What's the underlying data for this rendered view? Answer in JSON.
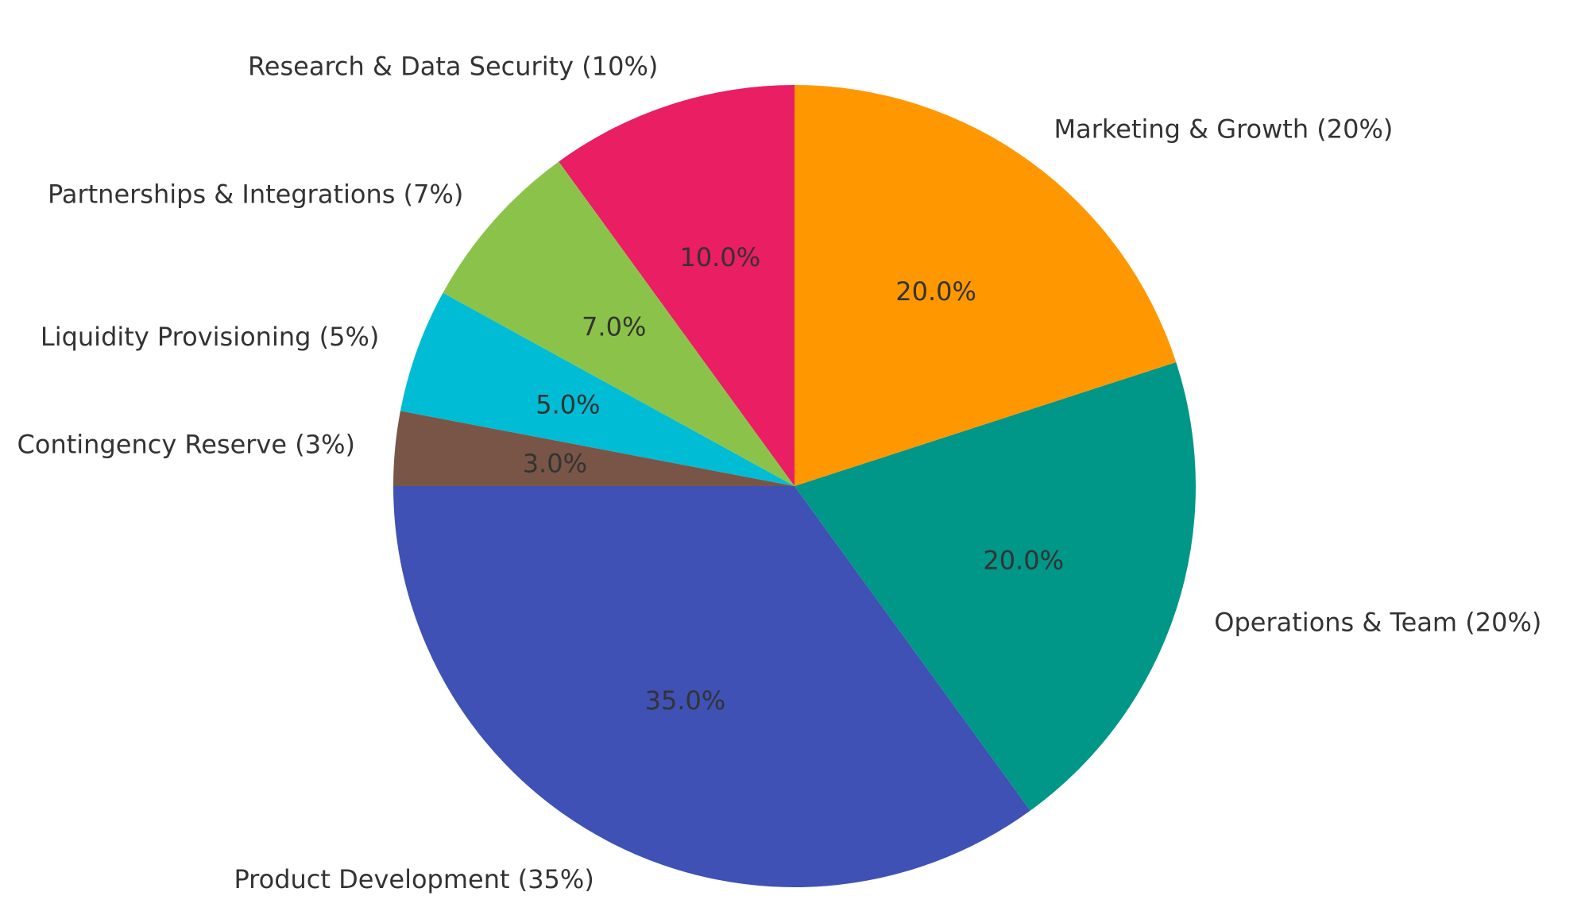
{
  "chart_data": {
    "type": "pie",
    "title": "",
    "start_angle_deg": 90,
    "direction": "counterclockwise",
    "slices": [
      {
        "name": "Research & Data Security",
        "value": 10,
        "label": "Research & Data Security (10%)",
        "pct_label": "10.0%",
        "color": "#E91E63"
      },
      {
        "name": "Partnerships & Integrations",
        "value": 7,
        "label": "Partnerships & Integrations (7%)",
        "pct_label": "7.0%",
        "color": "#8BC34A"
      },
      {
        "name": "Liquidity Provisioning",
        "value": 5,
        "label": "Liquidity Provisioning (5%)",
        "pct_label": "5.0%",
        "color": "#00BCD4"
      },
      {
        "name": "Contingency Reserve",
        "value": 3,
        "label": "Contingency Reserve (3%)",
        "pct_label": "3.0%",
        "color": "#795548"
      },
      {
        "name": "Product Development",
        "value": 35,
        "label": "Product Development (35%)",
        "pct_label": "35.0%",
        "color": "#3F51B5"
      },
      {
        "name": "Operations & Team",
        "value": 20,
        "label": "Operations & Team (20%)",
        "pct_label": "20.0%",
        "color": "#009688"
      },
      {
        "name": "Marketing & Growth",
        "value": 20,
        "label": "Marketing & Growth (20%)",
        "pct_label": "20.0%",
        "color": "#FF9800"
      }
    ]
  }
}
